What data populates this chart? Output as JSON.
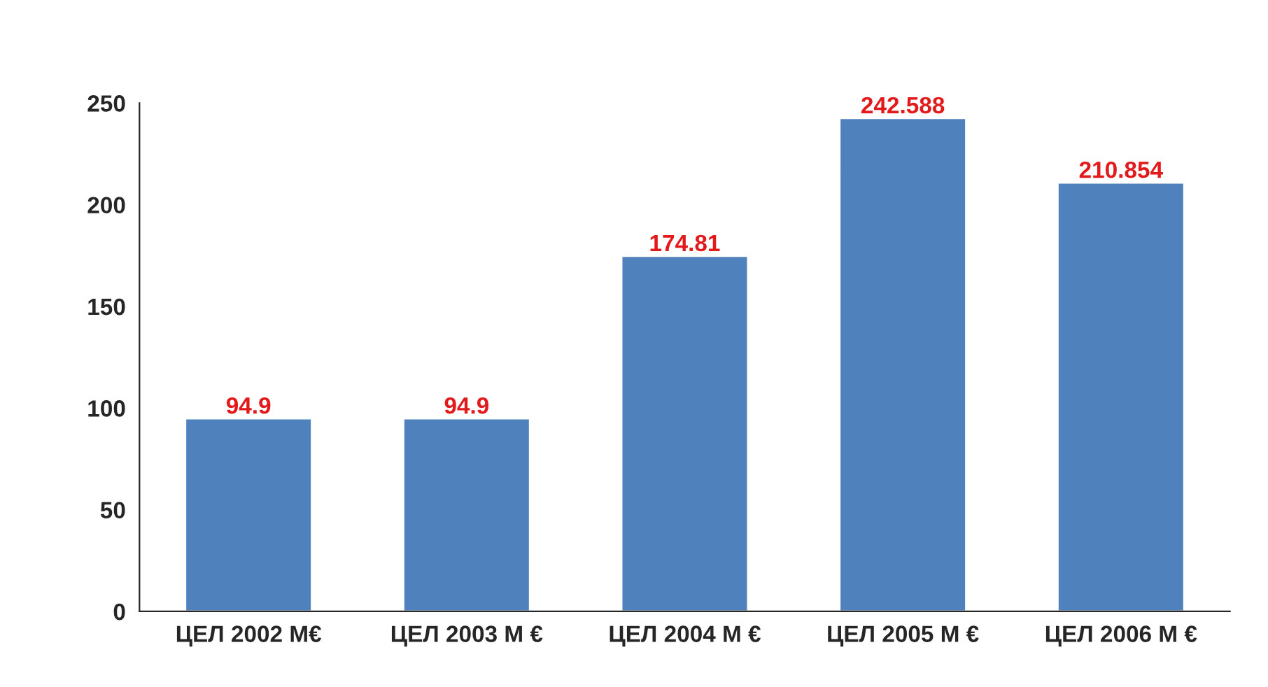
{
  "chart_data": {
    "type": "bar",
    "categories": [
      "ЦЕЛ 2002 М€",
      "ЦЕЛ 2003 М €",
      "ЦЕЛ 2004 М €",
      "ЦЕЛ 2005 М €",
      "ЦЕЛ 2006 М €"
    ],
    "values": [
      94.9,
      94.9,
      174.81,
      242.588,
      210.854
    ],
    "color": "#4f81bd",
    "data_labels": true,
    "ylim": [
      0,
      250
    ],
    "yticks": [
      0,
      50,
      100,
      150,
      200,
      250
    ],
    "grid": false,
    "legend": false
  }
}
